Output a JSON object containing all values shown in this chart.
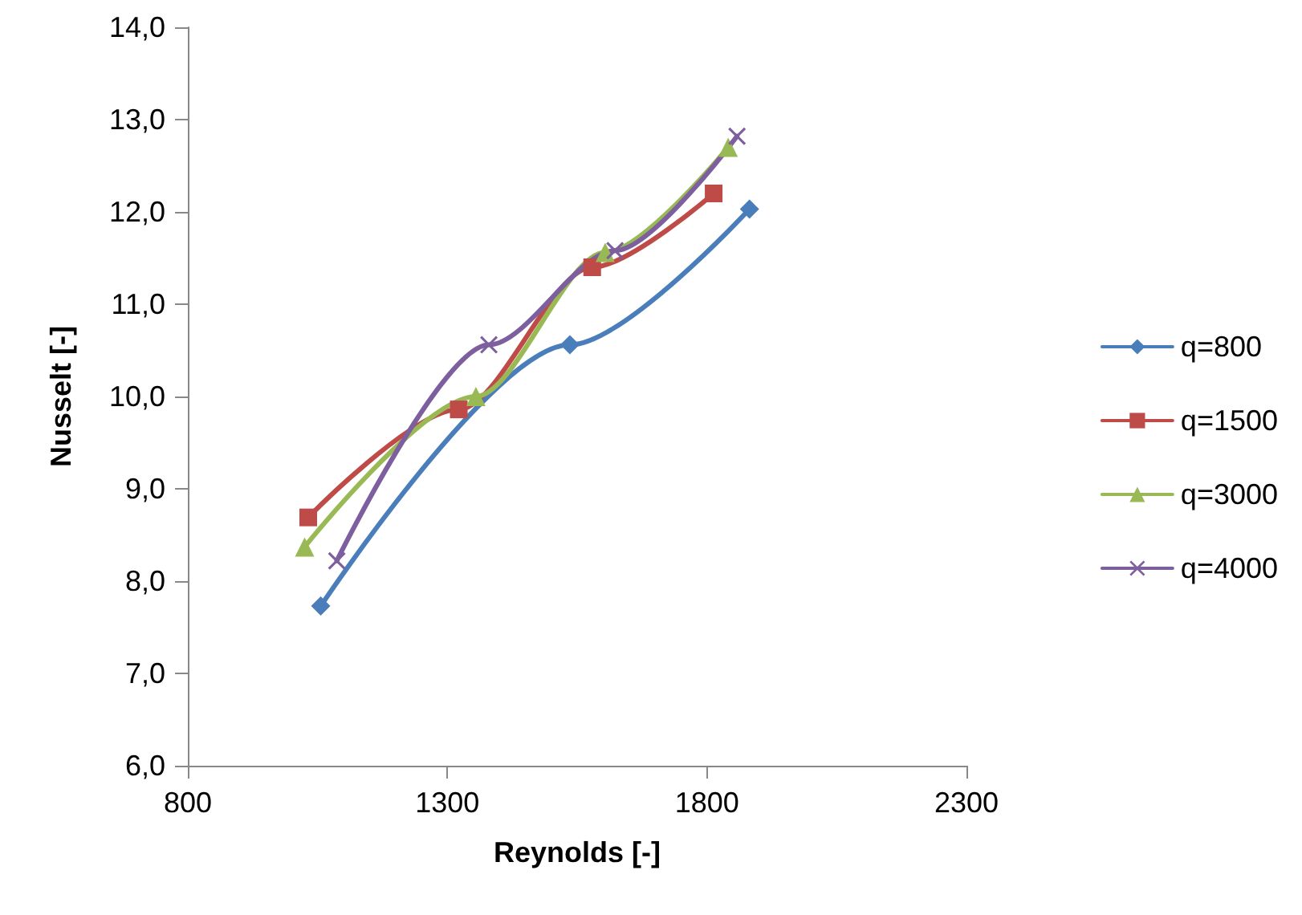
{
  "chart_data": {
    "type": "line",
    "xlabel": "Reynolds [-]",
    "ylabel": "Nusselt [-]",
    "xlim": [
      800,
      2300
    ],
    "xticks": [
      800,
      1300,
      1800,
      2300
    ],
    "ylim": [
      6,
      14
    ],
    "yticks": [
      {
        "value": 6,
        "label": "6,0"
      },
      {
        "value": 7,
        "label": "7,0"
      },
      {
        "value": 8,
        "label": "8,0"
      },
      {
        "value": 9,
        "label": "9,0"
      },
      {
        "value": 10,
        "label": "10,0"
      },
      {
        "value": 11,
        "label": "11,0"
      },
      {
        "value": 12,
        "label": "12,0"
      },
      {
        "value": 13,
        "label": "13,0"
      },
      {
        "value": 14,
        "label": "14,0"
      }
    ],
    "grid": false,
    "legend": "right",
    "series": [
      {
        "name": "q=800",
        "color": "#4a7ebb",
        "marker": "diamond",
        "x": [
          1056,
          1536,
          1882
        ],
        "values": [
          7.73,
          10.56,
          12.03
        ]
      },
      {
        "name": "q=1500",
        "color": "#be4b48",
        "marker": "square",
        "x": [
          1032,
          1322,
          1579,
          1813
        ],
        "values": [
          8.69,
          9.86,
          11.4,
          12.2
        ]
      },
      {
        "name": "q=3000",
        "color": "#98b954",
        "marker": "triangle",
        "x": [
          1025,
          1355,
          1604,
          1841
        ],
        "values": [
          8.37,
          10.0,
          11.56,
          12.7
        ]
      },
      {
        "name": "q=4000",
        "color": "#7d5fa0",
        "marker": "cross",
        "x": [
          1087,
          1380,
          1623,
          1858
        ],
        "values": [
          8.22,
          10.56,
          11.58,
          12.82
        ]
      }
    ]
  }
}
